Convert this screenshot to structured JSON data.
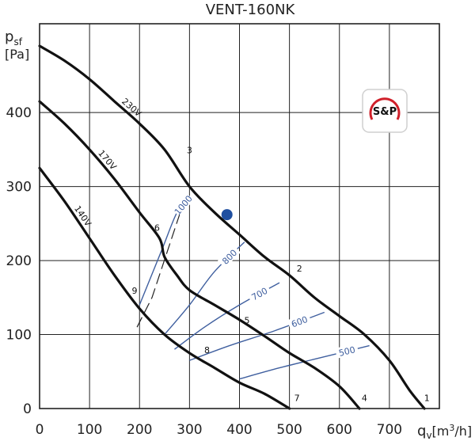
{
  "chart_data": {
    "type": "line",
    "title": "VENT-160NK",
    "ylabel": "p_sf [Pa]",
    "ylabel_main": "p",
    "ylabel_sub": "sf",
    "ylabel_unit": "[Pa]",
    "xlabel": "qv[m³/h]",
    "xlabel_main": "q",
    "xlabel_sub": "v",
    "xlabel_unit": "[m",
    "xlabel_exp": "3",
    "xlabel_unit_end": "/h]",
    "xlim": [
      0,
      800
    ],
    "ylim": [
      0,
      520
    ],
    "x_ticks": [
      0,
      100,
      200,
      300,
      400,
      500,
      600,
      700
    ],
    "y_ticks": [
      0,
      100,
      200,
      300,
      400
    ],
    "grid": true,
    "series": [
      {
        "name": "230V",
        "x": [
          0,
          50,
          100,
          150,
          200,
          250,
          300,
          350,
          400,
          450,
          500,
          550,
          600,
          650,
          700,
          740,
          770
        ],
        "y": [
          490,
          470,
          445,
          415,
          385,
          350,
          300,
          265,
          235,
          205,
          180,
          150,
          125,
          100,
          65,
          25,
          0
        ]
      },
      {
        "name": "170V",
        "x": [
          0,
          50,
          100,
          150,
          200,
          240,
          250,
          275,
          300,
          350,
          400,
          450,
          500,
          550,
          600,
          640
        ],
        "y": [
          415,
          385,
          350,
          310,
          265,
          230,
          205,
          180,
          160,
          140,
          120,
          98,
          75,
          55,
          30,
          0
        ]
      },
      {
        "name": "140V",
        "x": [
          0,
          50,
          100,
          150,
          200,
          250,
          300,
          350,
          400,
          450,
          500
        ],
        "y": [
          325,
          280,
          230,
          180,
          135,
          100,
          75,
          55,
          35,
          20,
          0
        ]
      }
    ],
    "efficiency_lines": [
      {
        "label": "1000",
        "x": [
          200,
          245,
          275,
          300
        ],
        "y": [
          140,
          215,
          265,
          285
        ]
      },
      {
        "label": "800",
        "x": [
          250,
          300,
          350,
          410
        ],
        "y": [
          100,
          140,
          185,
          225
        ]
      },
      {
        "label": "700",
        "x": [
          270,
          330,
          400,
          480
        ],
        "y": [
          80,
          110,
          140,
          170
        ]
      },
      {
        "label": "600",
        "x": [
          300,
          380,
          470,
          570
        ],
        "y": [
          65,
          85,
          105,
          130
        ]
      },
      {
        "label": "500",
        "x": [
          400,
          480,
          570,
          660
        ],
        "y": [
          40,
          55,
          70,
          85
        ]
      }
    ],
    "operating_point": {
      "x": 375,
      "y": 262
    },
    "system_line": {
      "x": [
        195,
        225,
        280
      ],
      "y": [
        110,
        150,
        262
      ]
    },
    "point_labels": [
      {
        "label": "1",
        "x": 775,
        "y": 10
      },
      {
        "label": "2",
        "x": 520,
        "y": 185
      },
      {
        "label": "3",
        "x": 300,
        "y": 345
      },
      {
        "label": "4",
        "x": 650,
        "y": 10
      },
      {
        "label": "5",
        "x": 415,
        "y": 115
      },
      {
        "label": "6",
        "x": 235,
        "y": 240
      },
      {
        "label": "7",
        "x": 515,
        "y": 10
      },
      {
        "label": "8",
        "x": 335,
        "y": 75
      },
      {
        "label": "9",
        "x": 190,
        "y": 155
      }
    ],
    "logo_text": "S&P"
  }
}
